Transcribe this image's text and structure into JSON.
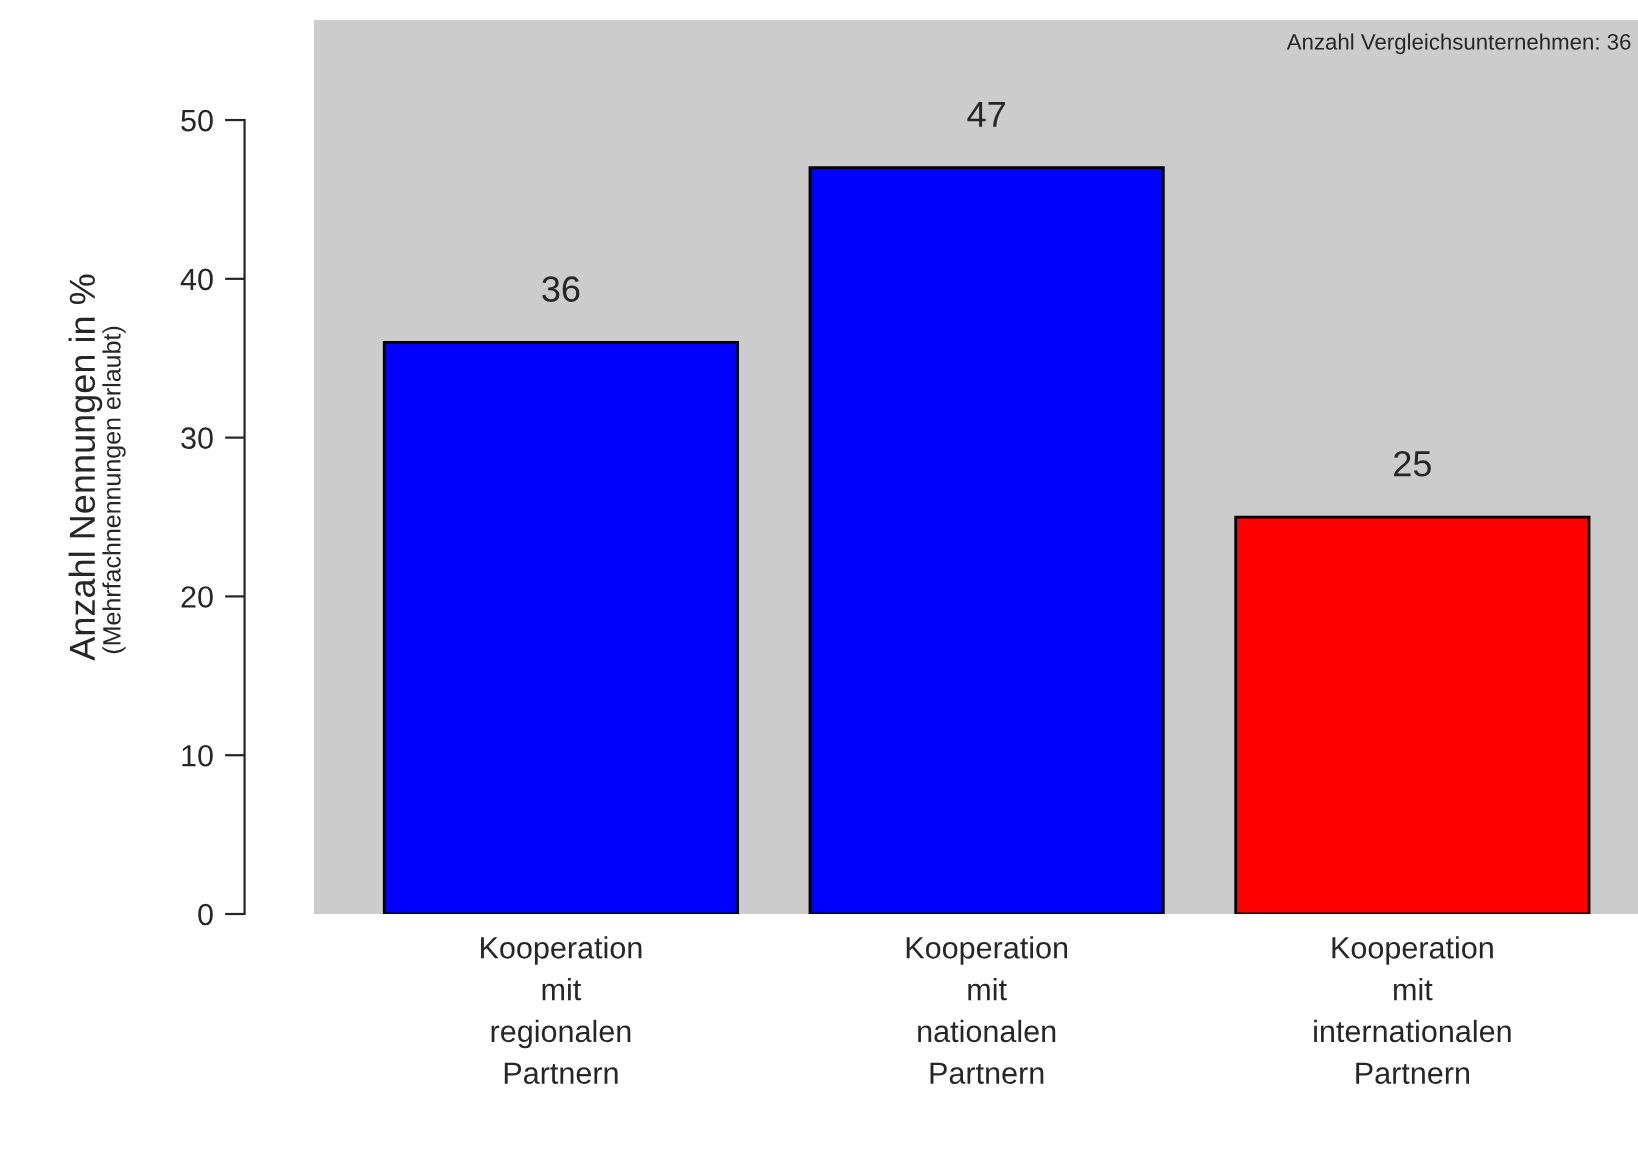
{
  "chart_data": {
    "type": "bar",
    "categories": [
      "Kooperation\nmit\nregionalen\nPartnern",
      "Kooperation\nmit\nnationalen\nPartnern",
      "Kooperation\nmit\ninternationalen\nPartnern"
    ],
    "values": [
      36,
      47,
      25
    ],
    "colors": [
      "#0000ff",
      "#0000ff",
      "#ff0000"
    ],
    "ylabel": "Anzahl Nennungen in %",
    "annotations": [
      "(Mehrfachnennungen erlaubt)",
      "Anzahl Vergleichsunternehmen: 36"
    ],
    "ylim": [
      0,
      56.3
    ],
    "yticks": [
      0,
      10,
      20,
      30,
      40,
      50
    ],
    "data_labels": true,
    "legend": false
  }
}
